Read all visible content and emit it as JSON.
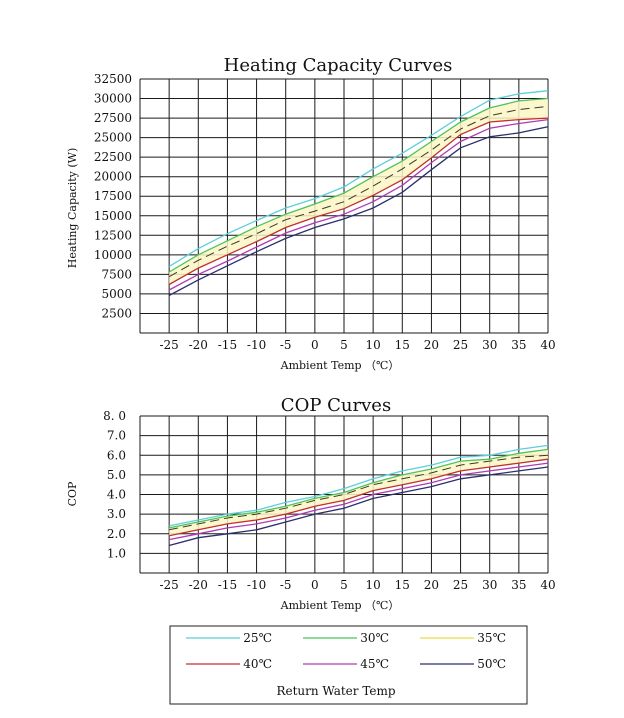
{
  "series_colors": {
    "25℃": "#5dcfd8",
    "30℃": "#4ec45a",
    "35℃": "#e8dd45",
    "40℃": "#c2302c",
    "45℃": "#b03ab2",
    "50℃": "#2b2f6e"
  },
  "chart_data": [
    {
      "type": "line",
      "title": "Heating Capacity Curves",
      "xlabel": "Ambient Temp （℃）",
      "ylabel": "Heating Capacity (W)",
      "x": [
        -25,
        -20,
        -15,
        -10,
        -5,
        0,
        5,
        10,
        15,
        20,
        25,
        30,
        35,
        40
      ],
      "x_ticks": [
        "-25",
        "-20",
        "-15",
        "-10",
        "-5",
        "0",
        "5",
        "10",
        "15",
        "20",
        "25",
        "30",
        "35",
        "40"
      ],
      "y_ticks": [
        "2500",
        "5000",
        "7500",
        "10000",
        "12500",
        "15000",
        "17500",
        "20000",
        "22500",
        "25000",
        "27500",
        "30000",
        "32500"
      ],
      "xlim": [
        -30,
        40
      ],
      "ylim": [
        0,
        32500
      ],
      "grid": true,
      "shaded_band": [
        "30℃",
        "40℃"
      ],
      "series": [
        {
          "name": "25℃",
          "values": [
            8500,
            10800,
            12700,
            14400,
            16000,
            17200,
            18700,
            21000,
            23000,
            25300,
            27700,
            29800,
            30600,
            31000
          ]
        },
        {
          "name": "30℃",
          "values": [
            7800,
            10000,
            11800,
            13600,
            15200,
            16500,
            17900,
            20000,
            22000,
            24500,
            27000,
            28800,
            29700,
            30000
          ]
        },
        {
          "name": "35℃",
          "values": [
            7200,
            9300,
            11100,
            12700,
            14500,
            15600,
            16800,
            18800,
            21000,
            23400,
            26100,
            27800,
            28600,
            29000
          ]
        },
        {
          "name": "40℃",
          "values": [
            6200,
            8300,
            10000,
            11700,
            13500,
            14800,
            15900,
            17600,
            19600,
            22400,
            25400,
            27000,
            27300,
            27500
          ]
        },
        {
          "name": "45℃",
          "values": [
            5500,
            7500,
            9200,
            11000,
            12800,
            14100,
            15200,
            16800,
            18900,
            21800,
            24500,
            26200,
            26800,
            27300
          ]
        },
        {
          "name": "50℃",
          "values": [
            4800,
            6800,
            8600,
            10400,
            12100,
            13500,
            14600,
            16000,
            18000,
            20900,
            23700,
            25100,
            25600,
            26400
          ]
        }
      ]
    },
    {
      "type": "line",
      "title": "COP Curves",
      "xlabel": "Ambient Temp （℃）",
      "ylabel": "COP",
      "x": [
        -25,
        -20,
        -15,
        -10,
        -5,
        0,
        5,
        10,
        15,
        20,
        25,
        30,
        35,
        40
      ],
      "x_ticks": [
        "-25",
        "-20",
        "-15",
        "-10",
        "-5",
        "0",
        "5",
        "10",
        "15",
        "20",
        "25",
        "30",
        "35",
        "40"
      ],
      "y_ticks": [
        "1.0",
        "2.0",
        "3.0",
        "4.0",
        "5.0",
        "6.0",
        "7.0",
        "8. 0"
      ],
      "xlim": [
        -30,
        40
      ],
      "ylim": [
        0,
        8.0
      ],
      "grid": true,
      "shaded_band": [
        "30℃",
        "40℃"
      ],
      "series": [
        {
          "name": "25℃",
          "values": [
            2.4,
            2.7,
            3.0,
            3.2,
            3.6,
            3.9,
            4.3,
            4.8,
            5.2,
            5.5,
            5.9,
            6.0,
            6.3,
            6.5
          ]
        },
        {
          "name": "30℃",
          "values": [
            2.3,
            2.6,
            2.9,
            3.1,
            3.4,
            3.8,
            4.1,
            4.6,
            5.0,
            5.3,
            5.7,
            5.8,
            6.1,
            6.3
          ]
        },
        {
          "name": "35℃",
          "values": [
            2.2,
            2.5,
            2.8,
            3.0,
            3.3,
            3.7,
            4.0,
            4.5,
            4.8,
            5.1,
            5.5,
            5.7,
            5.9,
            6.0
          ]
        },
        {
          "name": "40℃",
          "values": [
            1.9,
            2.2,
            2.5,
            2.7,
            3.0,
            3.4,
            3.7,
            4.2,
            4.5,
            4.8,
            5.2,
            5.4,
            5.6,
            5.8
          ]
        },
        {
          "name": "45℃",
          "values": [
            1.7,
            2.0,
            2.3,
            2.5,
            2.8,
            3.2,
            3.5,
            4.0,
            4.3,
            4.6,
            5.0,
            5.2,
            5.4,
            5.6
          ]
        },
        {
          "name": "50℃",
          "values": [
            1.4,
            1.8,
            2.0,
            2.2,
            2.6,
            3.0,
            3.3,
            3.8,
            4.1,
            4.4,
            4.8,
            5.0,
            5.2,
            5.4
          ]
        }
      ]
    }
  ],
  "legend": {
    "entries": [
      "25℃",
      "30℃",
      "35℃",
      "40℃",
      "45℃",
      "50℃"
    ],
    "footer": "Return Water Temp"
  }
}
